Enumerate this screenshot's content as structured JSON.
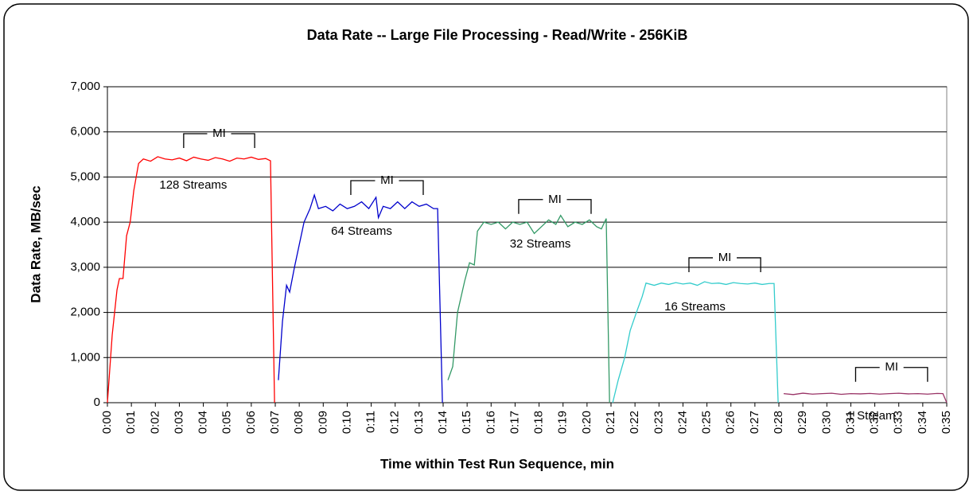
{
  "chart_data": {
    "type": "line",
    "title": "Data Rate -- Large File Processing - Read/Write - 256KiB",
    "xlabel": "Time within Test Run Sequence, min",
    "ylabel": "Data Rate, MB/sec",
    "xlim": [
      0,
      35
    ],
    "ylim": [
      0,
      7000
    ],
    "xticks": [
      {
        "value": 0,
        "label": "0:00"
      },
      {
        "value": 1,
        "label": "0:01"
      },
      {
        "value": 2,
        "label": "0:02"
      },
      {
        "value": 3,
        "label": "0:03"
      },
      {
        "value": 4,
        "label": "0:04"
      },
      {
        "value": 5,
        "label": "0:05"
      },
      {
        "value": 6,
        "label": "0:06"
      },
      {
        "value": 7,
        "label": "0:07"
      },
      {
        "value": 8,
        "label": "0:08"
      },
      {
        "value": 9,
        "label": "0:09"
      },
      {
        "value": 10,
        "label": "0:10"
      },
      {
        "value": 11,
        "label": "0:11"
      },
      {
        "value": 12,
        "label": "0:12"
      },
      {
        "value": 13,
        "label": "0:13"
      },
      {
        "value": 14,
        "label": "0:14"
      },
      {
        "value": 15,
        "label": "0:15"
      },
      {
        "value": 16,
        "label": "0:16"
      },
      {
        "value": 17,
        "label": "0:17"
      },
      {
        "value": 18,
        "label": "0:18"
      },
      {
        "value": 19,
        "label": "0:19"
      },
      {
        "value": 20,
        "label": "0:20"
      },
      {
        "value": 21,
        "label": "0:21"
      },
      {
        "value": 22,
        "label": "0:22"
      },
      {
        "value": 23,
        "label": "0:23"
      },
      {
        "value": 24,
        "label": "0:24"
      },
      {
        "value": 25,
        "label": "0:25"
      },
      {
        "value": 26,
        "label": "0:26"
      },
      {
        "value": 27,
        "label": "0:27"
      },
      {
        "value": 28,
        "label": "0:28"
      },
      {
        "value": 29,
        "label": "0:29"
      },
      {
        "value": 30,
        "label": "0:30"
      },
      {
        "value": 31,
        "label": "0:31"
      },
      {
        "value": 32,
        "label": "0:32"
      },
      {
        "value": 33,
        "label": "0:33"
      },
      {
        "value": 34,
        "label": "0:34"
      },
      {
        "value": 35,
        "label": "0:35"
      }
    ],
    "yticks": [
      0,
      {
        "value": 1000,
        "label": "1,000"
      },
      {
        "value": 2000,
        "label": "2,000"
      },
      {
        "value": 3000,
        "label": "3,000"
      },
      {
        "value": 4000,
        "label": "4,000"
      },
      {
        "value": 5000,
        "label": "5,000"
      },
      {
        "value": 6000,
        "label": "6,000"
      },
      {
        "value": 7000,
        "label": "7,000"
      }
    ],
    "grid": true,
    "series": [
      {
        "name": "128 Streams",
        "color": "#ff0000",
        "label_at": [
          3.58,
          4815
        ],
        "x": [
          0,
          0.2,
          0.4,
          0.5,
          0.65,
          0.8,
          0.95,
          1.1,
          1.3,
          1.5,
          1.8,
          2.1,
          2.4,
          2.7,
          3.0,
          3.3,
          3.6,
          3.9,
          4.2,
          4.5,
          4.8,
          5.1,
          5.4,
          5.7,
          6.0,
          6.3,
          6.6,
          6.8,
          6.97
        ],
        "values": [
          0,
          1500,
          2500,
          2750,
          2750,
          3700,
          4000,
          4700,
          5300,
          5400,
          5350,
          5450,
          5400,
          5380,
          5420,
          5360,
          5440,
          5400,
          5370,
          5430,
          5400,
          5350,
          5420,
          5400,
          5440,
          5390,
          5410,
          5360,
          0
        ]
      },
      {
        "name": "64 Streams",
        "color": "#0000cc",
        "label_at": [
          10.6,
          3790
        ],
        "x": [
          7.13,
          7.3,
          7.47,
          7.6,
          7.8,
          8.0,
          8.2,
          8.45,
          8.63,
          8.8,
          9.1,
          9.4,
          9.7,
          10.0,
          10.3,
          10.6,
          10.9,
          11.2,
          11.3,
          11.5,
          11.8,
          12.1,
          12.4,
          12.7,
          13.0,
          13.3,
          13.6,
          13.77,
          13.97
        ],
        "values": [
          500,
          1800,
          2600,
          2450,
          3000,
          3500,
          4000,
          4300,
          4600,
          4300,
          4350,
          4250,
          4400,
          4300,
          4350,
          4450,
          4300,
          4550,
          4100,
          4350,
          4300,
          4450,
          4300,
          4450,
          4350,
          4400,
          4300,
          4300,
          0
        ]
      },
      {
        "name": "32 Streams",
        "color": "#339966",
        "label_at": [
          18.05,
          3510
        ],
        "x": [
          14.2,
          14.4,
          14.6,
          14.9,
          15.1,
          15.3,
          15.43,
          15.7,
          16.0,
          16.3,
          16.6,
          16.9,
          17.2,
          17.5,
          17.8,
          18.1,
          18.4,
          18.7,
          18.9,
          19.2,
          19.5,
          19.8,
          20.1,
          20.4,
          20.6,
          20.8,
          20.94
        ],
        "values": [
          500,
          800,
          2000,
          2700,
          3100,
          3050,
          3800,
          4000,
          3950,
          4000,
          3850,
          4000,
          3950,
          4000,
          3750,
          3900,
          4050,
          3950,
          4150,
          3900,
          4000,
          3950,
          4050,
          3900,
          3850,
          4080,
          0
        ]
      },
      {
        "name": "16 Streams",
        "color": "#33cccc",
        "label_at": [
          24.5,
          2115
        ],
        "x": [
          21.07,
          21.3,
          21.57,
          21.8,
          22.06,
          22.3,
          22.46,
          22.8,
          23.1,
          23.4,
          23.7,
          24.0,
          24.3,
          24.6,
          24.9,
          25.2,
          25.5,
          25.8,
          26.1,
          26.4,
          26.7,
          27.0,
          27.3,
          27.6,
          27.8,
          27.97
        ],
        "values": [
          0,
          500,
          1000,
          1600,
          2000,
          2350,
          2650,
          2600,
          2650,
          2620,
          2660,
          2630,
          2650,
          2600,
          2680,
          2640,
          2650,
          2620,
          2660,
          2640,
          2630,
          2650,
          2620,
          2640,
          2640,
          0
        ]
      },
      {
        "name": "1 Stream",
        "color": "#993366",
        "label_at": [
          31.85,
          -300
        ],
        "x": [
          28.2,
          28.6,
          29.0,
          29.4,
          29.8,
          30.2,
          30.6,
          31.0,
          31.4,
          31.8,
          32.2,
          32.6,
          33.0,
          33.4,
          33.8,
          34.2,
          34.6,
          34.84,
          35
        ],
        "values": [
          200,
          180,
          210,
          190,
          200,
          210,
          185,
          200,
          195,
          205,
          190,
          200,
          210,
          195,
          200,
          190,
          205,
          200,
          0
        ]
      }
    ],
    "annotations": [
      {
        "text": "MI",
        "x0": 3.18,
        "x1": 6.14,
        "y": 5960
      },
      {
        "text": "MI",
        "x0": 10.15,
        "x1": 13.17,
        "y": 4920
      },
      {
        "text": "MI",
        "x0": 17.15,
        "x1": 20.17,
        "y": 4500
      },
      {
        "text": "MI",
        "x0": 24.25,
        "x1": 27.24,
        "y": 3210
      },
      {
        "text": "MI",
        "x0": 31.2,
        "x1": 34.2,
        "y": 780
      }
    ]
  }
}
